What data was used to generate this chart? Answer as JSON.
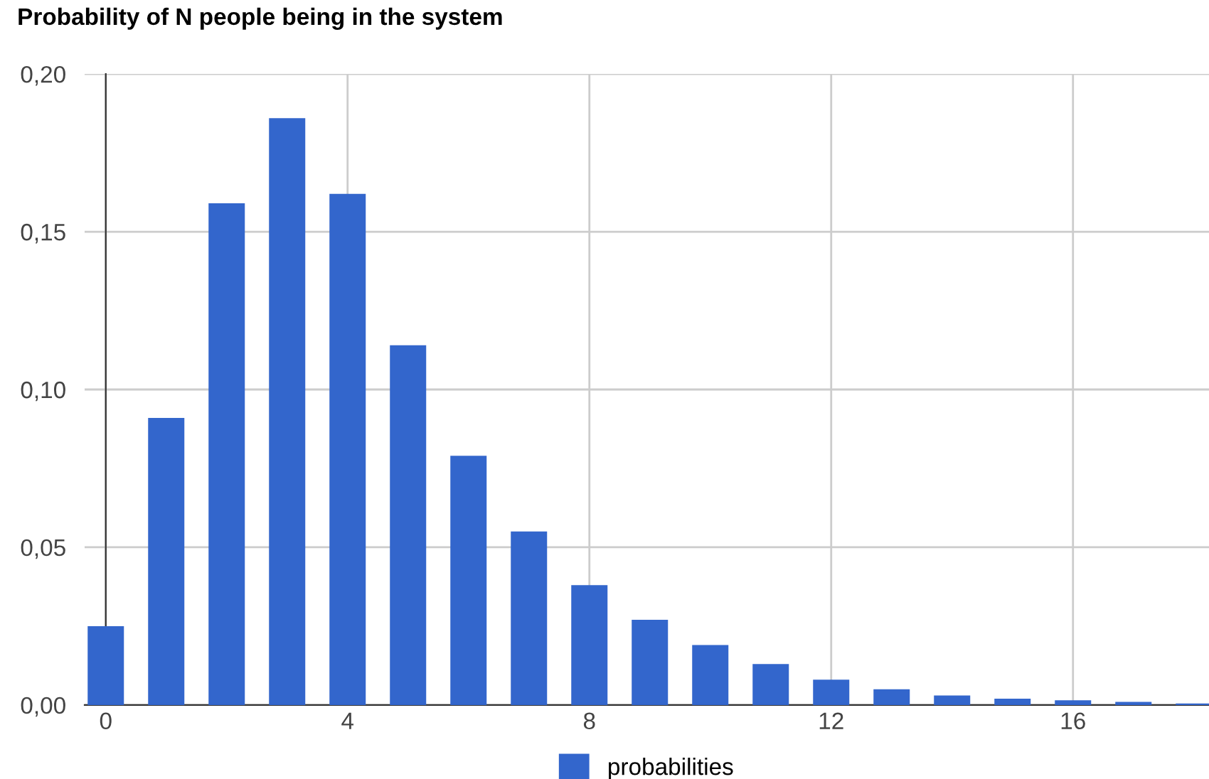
{
  "chart_data": {
    "type": "bar",
    "title": "Probability of N people being in the system",
    "x": [
      0,
      1,
      2,
      3,
      4,
      5,
      6,
      7,
      8,
      9,
      10,
      11,
      12,
      13,
      14,
      15,
      16,
      17,
      18
    ],
    "series": [
      {
        "name": "probabilities",
        "color": "#3366cc",
        "values": [
          0.025,
          0.091,
          0.159,
          0.186,
          0.162,
          0.114,
          0.079,
          0.055,
          0.038,
          0.027,
          0.019,
          0.013,
          0.008,
          0.005,
          0.003,
          0.002,
          0.0015,
          0.001,
          0.0005
        ]
      }
    ],
    "xlim": [
      -0.35,
      18.25
    ],
    "xticks": [
      0,
      4,
      8,
      12,
      16
    ],
    "ylim": [
      0,
      0.2
    ],
    "yticks": [
      {
        "value": 0,
        "label": "0,00"
      },
      {
        "value": 0.05,
        "label": "0,05"
      },
      {
        "value": 0.1,
        "label": "0,10"
      },
      {
        "value": 0.15,
        "label": "0,15"
      },
      {
        "value": 0.2,
        "label": "0,20"
      }
    ],
    "grid": true,
    "legend": "bottom"
  }
}
